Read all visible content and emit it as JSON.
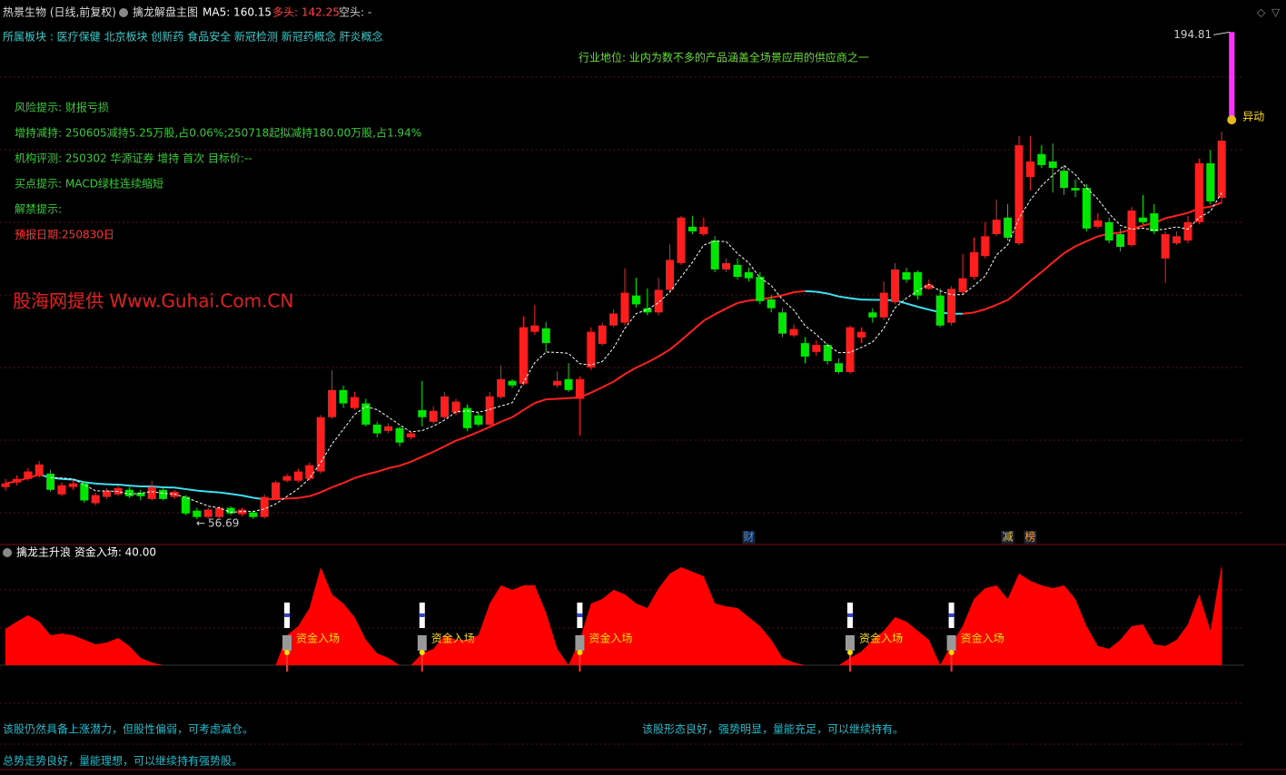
{
  "header": {
    "stock": "热景生物 (日线,前复权)",
    "indicator": "擒龙解盘主图",
    "ma5": "MA5: 160.15",
    "bull": "多头: 142.25",
    "bear": "空头: -"
  },
  "sectors": "所属板块 : 医疗保健 北京板块 创新药 食品安全 新冠检测 新冠药概念 肝炎概念",
  "industry": "行业地位: 业内为数不多的产品涵盖全场景应用的供应商之一",
  "notes": [
    {
      "text": "风险提示: 财报亏损",
      "color": "#33cc33"
    },
    {
      "text": "增持减持: 250605减持5.25万股,占0.06%;250718起拟减持180.00万股,占1.94%",
      "color": "#33cc33"
    },
    {
      "text": "机构评测: 250302 华源证券 增持 首次 目标价:--",
      "color": "#33cc33"
    },
    {
      "text": "买点提示: MACD绿柱连续缩短",
      "color": "#33cc33"
    },
    {
      "text": "解禁提示:",
      "color": "#33cc33"
    },
    {
      "text": "预报日期:250830日",
      "color": "#ff3030"
    }
  ],
  "watermark": "股海网提供 Www.Guhai.Com.CN",
  "comments": [
    "该股仍然具备上涨潜力，但股性偏弱，可考虑减仓。",
    "该股形态良好，强势明显，量能充足，可以继续持有。",
    "总势走势良好，量能理想，可以继续持有强势股。"
  ],
  "chart_data": [
    {
      "type": "candlestick",
      "up_color": "#ff1e1e",
      "down_color": "#00e600",
      "ma5_color": "#ffffff",
      "ma_long_colors": [
        "#ff2020",
        "#40e0f0"
      ],
      "ylim": [
        49.5,
        203.9
      ],
      "alert": {
        "label": "异动",
        "low": 169.9,
        "high": 194.81,
        "color": "#ff33ff"
      },
      "ohlc": [
        [
          65.8,
          68.1,
          64.8,
          66.8
        ],
        [
          67.1,
          69.1,
          66.3,
          68.1
        ],
        [
          68.1,
          71.2,
          67.6,
          70.2
        ],
        [
          68.9,
          73.2,
          68.4,
          72.2
        ],
        [
          69.6,
          70.7,
          64.5,
          65.0
        ],
        [
          63.7,
          67.1,
          63.2,
          66.3
        ],
        [
          65.8,
          67.6,
          65.0,
          66.8
        ],
        [
          66.8,
          67.3,
          61.4,
          62.0
        ],
        [
          61.2,
          64.2,
          60.6,
          63.5
        ],
        [
          63.0,
          65.5,
          62.4,
          64.8
        ],
        [
          63.7,
          66.3,
          63.2,
          65.5
        ],
        [
          65.0,
          65.8,
          62.7,
          63.2
        ],
        [
          64.2,
          65.0,
          62.0,
          63.2
        ],
        [
          62.4,
          67.6,
          62.0,
          65.8
        ],
        [
          65.0,
          65.5,
          62.0,
          62.4
        ],
        [
          63.0,
          65.0,
          62.4,
          64.5
        ],
        [
          63.0,
          63.5,
          57.8,
          58.3
        ],
        [
          59.1,
          59.9,
          56.69,
          57.3
        ],
        [
          57.3,
          59.9,
          56.8,
          59.4
        ],
        [
          57.3,
          60.4,
          57.0,
          59.9
        ],
        [
          59.9,
          60.4,
          57.8,
          58.3
        ],
        [
          58.1,
          59.9,
          57.5,
          59.4
        ],
        [
          58.6,
          59.1,
          56.8,
          57.3
        ],
        [
          57.3,
          63.7,
          56.8,
          63.0
        ],
        [
          62.4,
          67.6,
          62.0,
          67.1
        ],
        [
          67.6,
          69.6,
          67.1,
          68.9
        ],
        [
          67.6,
          71.0,
          67.1,
          70.2
        ],
        [
          68.1,
          72.7,
          67.6,
          72.0
        ],
        [
          70.2,
          86.2,
          69.6,
          85.6
        ],
        [
          85.6,
          98.9,
          85.1,
          93.3
        ],
        [
          93.3,
          94.6,
          88.2,
          89.5
        ],
        [
          88.2,
          92.8,
          87.7,
          91.3
        ],
        [
          89.5,
          90.8,
          83.0,
          83.5
        ],
        [
          83.5,
          84.3,
          79.9,
          81.0
        ],
        [
          81.7,
          83.8,
          81.0,
          83.0
        ],
        [
          82.5,
          83.0,
          77.4,
          78.4
        ],
        [
          79.9,
          81.5,
          79.4,
          81.0
        ],
        [
          87.6,
          95.9,
          83.0,
          85.6
        ],
        [
          84.3,
          88.7,
          83.8,
          87.4
        ],
        [
          85.6,
          92.8,
          85.1,
          91.5
        ],
        [
          86.9,
          90.8,
          86.1,
          90.0
        ],
        [
          88.2,
          89.2,
          81.7,
          82.5
        ],
        [
          86.1,
          86.9,
          83.0,
          83.5
        ],
        [
          83.5,
          92.8,
          83.0,
          91.5
        ],
        [
          91.3,
          100.3,
          90.8,
          96.4
        ],
        [
          95.9,
          96.4,
          93.9,
          94.6
        ],
        [
          95.1,
          114.2,
          94.6,
          111.1
        ],
        [
          109.8,
          117.4,
          109.0,
          111.6
        ],
        [
          110.8,
          112.6,
          104.1,
          106.6
        ],
        [
          94.6,
          98.5,
          93.9,
          95.9
        ],
        [
          96.4,
          100.9,
          92.8,
          93.3
        ],
        [
          90.8,
          97.2,
          80.4,
          96.4
        ],
        [
          99.7,
          111.1,
          98.9,
          109.8
        ],
        [
          106.4,
          112.4,
          105.9,
          111.6
        ],
        [
          111.6,
          116.2,
          111.1,
          115.0
        ],
        [
          112.4,
          127.8,
          111.6,
          120.9
        ],
        [
          120.1,
          125.1,
          116.7,
          117.6
        ],
        [
          116.5,
          122.1,
          114.5,
          115.3
        ],
        [
          115.3,
          125.1,
          114.5,
          121.7
        ],
        [
          121.7,
          134.6,
          120.9,
          130.2
        ],
        [
          129.3,
          142.7,
          128.8,
          142.2
        ],
        [
          139.6,
          142.7,
          137.5,
          138.3
        ],
        [
          137.5,
          142.2,
          137.0,
          139.6
        ],
        [
          135.7,
          137.0,
          126.7,
          127.5
        ],
        [
          127.5,
          130.6,
          126.7,
          129.3
        ],
        [
          128.8,
          130.6,
          124.6,
          125.4
        ],
        [
          126.7,
          128.0,
          124.1,
          125.0
        ],
        [
          125.4,
          126.7,
          117.6,
          118.5
        ],
        [
          119.0,
          120.3,
          115.3,
          116.5
        ],
        [
          115.3,
          116.5,
          108.3,
          109.3
        ],
        [
          108.8,
          111.9,
          108.3,
          110.6
        ],
        [
          106.6,
          108.3,
          100.9,
          102.8
        ],
        [
          104.1,
          107.4,
          103.0,
          106.1
        ],
        [
          106.1,
          106.6,
          100.5,
          101.5
        ],
        [
          100.9,
          102.3,
          97.9,
          98.4
        ],
        [
          98.4,
          111.6,
          97.9,
          111.1
        ],
        [
          108.2,
          111.1,
          106.6,
          109.8
        ],
        [
          115.3,
          116.5,
          112.4,
          113.9
        ],
        [
          113.9,
          124.1,
          113.2,
          120.9
        ],
        [
          118.2,
          129.3,
          117.6,
          127.5
        ],
        [
          126.7,
          128.0,
          123.7,
          124.6
        ],
        [
          126.7,
          127.2,
          119.0,
          120.1
        ],
        [
          122.0,
          124.6,
          121.7,
          123.2
        ],
        [
          120.1,
          122.0,
          111.1,
          111.6
        ],
        [
          112.4,
          122.8,
          111.6,
          122.0
        ],
        [
          121.1,
          131.9,
          120.5,
          125.0
        ],
        [
          125.4,
          136.5,
          124.6,
          132.4
        ],
        [
          131.3,
          140.9,
          130.6,
          136.9
        ],
        [
          137.5,
          147.3,
          137.0,
          141.6
        ],
        [
          142.2,
          146.0,
          135.7,
          136.5
        ],
        [
          134.9,
          165.3,
          134.4,
          162.7
        ],
        [
          153.7,
          165.3,
          149.9,
          158.1
        ],
        [
          160.2,
          162.7,
          156.3,
          157.1
        ],
        [
          158.1,
          163.2,
          149.3,
          156.3
        ],
        [
          155.5,
          156.8,
          148.6,
          150.6
        ],
        [
          150.6,
          153.0,
          148.0,
          149.9
        ],
        [
          150.6,
          151.7,
          138.3,
          139.1
        ],
        [
          139.6,
          143.4,
          139.1,
          141.4
        ],
        [
          140.9,
          142.2,
          134.9,
          135.7
        ],
        [
          137.5,
          139.1,
          132.6,
          133.9
        ],
        [
          134.4,
          145.2,
          133.9,
          144.2
        ],
        [
          142.2,
          148.6,
          140.3,
          140.9
        ],
        [
          143.4,
          146.0,
          137.5,
          138.3
        ],
        [
          130.6,
          138.3,
          123.6,
          137.5
        ],
        [
          134.9,
          138.3,
          134.4,
          136.9
        ],
        [
          135.7,
          142.7,
          134.9,
          140.9
        ],
        [
          140.9,
          158.9,
          140.3,
          157.6
        ],
        [
          157.6,
          161.4,
          146.0,
          146.8
        ],
        [
          147.8,
          166.6,
          146.5,
          164.0
        ]
      ],
      "events": [
        null,
        null,
        null,
        null,
        null,
        null,
        null,
        null,
        null,
        null,
        null,
        null,
        null,
        null,
        null,
        null,
        null,
        null,
        null,
        null,
        null,
        null,
        null,
        null,
        null,
        null,
        null,
        null,
        null,
        null,
        null,
        null,
        null,
        null,
        null,
        null,
        null,
        null,
        null,
        null,
        null,
        null,
        null,
        null,
        null,
        null,
        null,
        null,
        null,
        null,
        null,
        null,
        null,
        null,
        null,
        null,
        null,
        null,
        null,
        null,
        null,
        null,
        null,
        null,
        null,
        null,
        {
          "label": "财",
          "color": "#3399ff"
        },
        null,
        null,
        null,
        null,
        null,
        null,
        null,
        null,
        null,
        null,
        null,
        null,
        null,
        null,
        null,
        null,
        null,
        null,
        null,
        null,
        null,
        null,
        {
          "label": "减",
          "color": "#e8c040"
        },
        null,
        {
          "label": "榜",
          "color": "#ff9933"
        },
        null,
        null,
        null,
        null,
        null,
        null,
        null,
        null,
        null,
        null,
        null,
        null,
        null,
        null,
        null,
        null,
        null
      ]
    },
    {
      "type": "area",
      "title": "擒龙主升浪 资金入场: 40.00",
      "color": "#ff0000",
      "ylim": [
        0,
        40
      ],
      "values": [
        14.4,
        17.3,
        19.8,
        17.3,
        11.9,
        12.6,
        11.9,
        10.1,
        8.3,
        9.0,
        10.8,
        7.6,
        2.9,
        1.1,
        0,
        0,
        0,
        0,
        0,
        0,
        0,
        0,
        0,
        0,
        0,
        11.9,
        15.5,
        22.7,
        38.9,
        28.1,
        24.5,
        19.1,
        10.1,
        4.7,
        2.9,
        0,
        0,
        4.7,
        6.5,
        11.9,
        10.1,
        10.1,
        11.9,
        24.5,
        31.7,
        29.9,
        31.7,
        31.7,
        20.9,
        6.5,
        0,
        10.1,
        24.5,
        26.3,
        29.9,
        28.1,
        24.5,
        22.7,
        30.6,
        36.4,
        38.9,
        37.1,
        35.3,
        24.5,
        23.4,
        22.7,
        19.1,
        15.5,
        10.1,
        2.9,
        1.1,
        0,
        0,
        0,
        0,
        2.9,
        5.4,
        10.1,
        13.7,
        19.1,
        17.3,
        13.7,
        10.1,
        0,
        8.3,
        15.5,
        26.3,
        30.6,
        31.7,
        26.3,
        36.4,
        33.5,
        31.7,
        30.6,
        31.7,
        26.3,
        15.5,
        7.6,
        6.5,
        10.1,
        15.5,
        16.2,
        8.3,
        7.6,
        10.1,
        16.2,
        28.1,
        13.7,
        40
      ],
      "signals": [
        null,
        null,
        null,
        null,
        null,
        null,
        null,
        null,
        null,
        null,
        null,
        null,
        null,
        null,
        null,
        null,
        null,
        null,
        null,
        null,
        null,
        null,
        null,
        null,
        null,
        "资金入场",
        null,
        null,
        null,
        null,
        null,
        null,
        null,
        null,
        null,
        null,
        null,
        "资金入场",
        null,
        null,
        null,
        null,
        null,
        null,
        null,
        null,
        null,
        null,
        null,
        null,
        null,
        "资金入场",
        null,
        null,
        null,
        null,
        null,
        null,
        null,
        null,
        null,
        null,
        null,
        null,
        null,
        null,
        null,
        null,
        null,
        null,
        null,
        null,
        null,
        null,
        null,
        "资金入场",
        null,
        null,
        null,
        null,
        null,
        null,
        null,
        null,
        "资金入场",
        null,
        null,
        null,
        null,
        null,
        null,
        null,
        null,
        null,
        null,
        null,
        null,
        null,
        null,
        null,
        null,
        null,
        null,
        null,
        null,
        null,
        null,
        null,
        null,
        null
      ]
    }
  ]
}
